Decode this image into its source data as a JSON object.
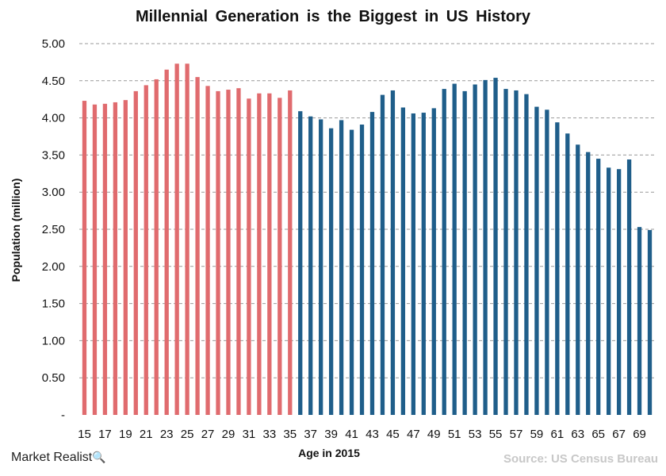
{
  "chart_data": {
    "type": "bar",
    "title": "Millennial Generation is the Biggest in US History",
    "xlabel": "Age in 2015",
    "ylabel": "Population (million)",
    "ylim": [
      0,
      5
    ],
    "grid": true,
    "colors": {
      "millennial": "#e06b6e",
      "other": "#1f5e8a",
      "grid": "#999999"
    },
    "categories": [
      "15",
      "16",
      "17",
      "18",
      "19",
      "20",
      "21",
      "22",
      "23",
      "24",
      "25",
      "26",
      "27",
      "28",
      "29",
      "30",
      "31",
      "32",
      "33",
      "34",
      "35",
      "36",
      "37",
      "38",
      "39",
      "40",
      "41",
      "42",
      "43",
      "44",
      "45",
      "46",
      "47",
      "48",
      "49",
      "50",
      "51",
      "52",
      "53",
      "54",
      "55",
      "56",
      "57",
      "58",
      "59",
      "60",
      "61",
      "62",
      "63",
      "64",
      "65",
      "66",
      "67",
      "68",
      "69",
      "70"
    ],
    "values": [
      4.23,
      4.18,
      4.19,
      4.21,
      4.24,
      4.36,
      4.44,
      4.52,
      4.65,
      4.73,
      4.73,
      4.55,
      4.43,
      4.36,
      4.38,
      4.4,
      4.26,
      4.33,
      4.33,
      4.27,
      4.37,
      4.09,
      4.02,
      3.98,
      3.86,
      3.97,
      3.84,
      3.91,
      4.08,
      4.31,
      4.37,
      4.14,
      4.06,
      4.07,
      4.13,
      4.39,
      4.46,
      4.36,
      4.45,
      4.51,
      4.54,
      4.39,
      4.37,
      4.32,
      4.15,
      4.11,
      3.94,
      3.79,
      3.64,
      3.54,
      3.45,
      3.33,
      3.31,
      3.44,
      2.53,
      2.49
    ],
    "millennial_count": 21,
    "yticks": [
      "-",
      "0.50",
      "1.00",
      "1.50",
      "2.00",
      "2.50",
      "3.00",
      "3.50",
      "4.00",
      "4.50",
      "5.00"
    ],
    "xtick_labels": [
      "15",
      "",
      "17",
      "",
      "19",
      "",
      "21",
      "",
      "23",
      "",
      "25",
      "",
      "27",
      "",
      "29",
      "",
      "31",
      "",
      "33",
      "",
      "35",
      "",
      "37",
      "",
      "39",
      "",
      "41",
      "",
      "43",
      "",
      "45",
      "",
      "47",
      "",
      "49",
      "",
      "51",
      "",
      "53",
      "",
      "55",
      "",
      "57",
      "",
      "59",
      "",
      "61",
      "",
      "63",
      "",
      "65",
      "",
      "67",
      "",
      "69",
      ""
    ]
  },
  "brand": {
    "name": "Market Realist",
    "icon": "magnifier-icon",
    "glyph": "🔍"
  },
  "source": "Source: US Census Bureau"
}
